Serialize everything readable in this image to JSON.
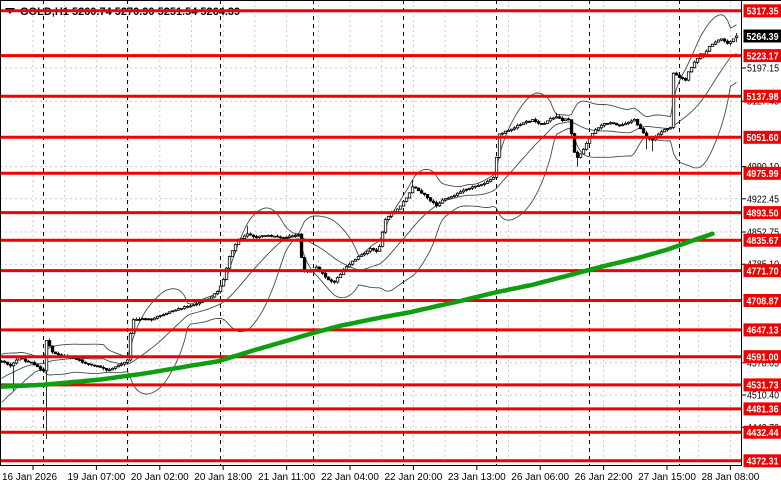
{
  "window": {
    "title": "GOLD,H1  5260.74 5270.90 5251.54 5264.39"
  },
  "chart_data": {
    "type": "candlestick",
    "symbol": "GOLD",
    "timeframe": "H1",
    "title": "GOLD,H1  5260.74 5270.90 5251.54 5264.39",
    "last_bar_ohlc": {
      "open": 5260.74,
      "high": 5270.9,
      "low": 5251.54,
      "close": 5264.39
    },
    "current_price_label": "5264.39",
    "x_labels": [
      "16 Jan 2026",
      "19 Jan 07:00",
      "20 Jan 02:00",
      "20 Jan 18:00",
      "21 Jan 11:00",
      "22 Jan 04:00",
      "22 Jan 20:00",
      "23 Jan 13:00",
      "26 Jan 06:00",
      "26 Jan 22:00",
      "27 Jan 15:00",
      "28 Jan 08:00"
    ],
    "y_tick_labels": [
      "5197.15",
      "5127.45",
      "4990.10",
      "4922.45",
      "4852.75",
      "4785.10",
      "4578.05",
      "4510.40",
      "4442.70"
    ],
    "red_levels": [
      "5317.35",
      "5223.17",
      "5137.98",
      "5051.60",
      "4975.99",
      "4893.50",
      "4835.67",
      "4771.70",
      "4708.87",
      "4647.13",
      "4591.00",
      "4531.73",
      "4481.36",
      "4432.44",
      "4372.31"
    ],
    "ylim": [
      4361.4,
      5340
    ],
    "n_bars": 246,
    "bollinger": {
      "period": 20,
      "deviation": 2
    },
    "day_separator_bars": [
      14,
      42,
      73,
      104,
      134,
      165,
      196,
      226
    ],
    "close_path_anchors": [
      [
        0,
        4583
      ],
      [
        3,
        4572
      ],
      [
        6,
        4588
      ],
      [
        10,
        4578
      ],
      [
        13,
        4566
      ],
      [
        14,
        4560
      ],
      [
        15,
        4625
      ],
      [
        17,
        4600
      ],
      [
        20,
        4592
      ],
      [
        24,
        4588
      ],
      [
        28,
        4578
      ],
      [
        32,
        4570
      ],
      [
        36,
        4562
      ],
      [
        40,
        4575
      ],
      [
        42,
        4585
      ],
      [
        43,
        4640
      ],
      [
        44,
        4668
      ],
      [
        47,
        4672
      ],
      [
        50,
        4668
      ],
      [
        53,
        4678
      ],
      [
        57,
        4688
      ],
      [
        61,
        4695
      ],
      [
        65,
        4703
      ],
      [
        69,
        4712
      ],
      [
        72,
        4728
      ],
      [
        74,
        4752
      ],
      [
        76,
        4800
      ],
      [
        78,
        4828
      ],
      [
        80,
        4840
      ],
      [
        82,
        4848
      ],
      [
        85,
        4842
      ],
      [
        88,
        4846
      ],
      [
        91,
        4843
      ],
      [
        94,
        4840
      ],
      [
        97,
        4846
      ],
      [
        99,
        4848
      ],
      [
        100,
        4800
      ],
      [
        101,
        4772
      ],
      [
        103,
        4768
      ],
      [
        105,
        4778
      ],
      [
        107,
        4765
      ],
      [
        109,
        4752
      ],
      [
        111,
        4748
      ],
      [
        113,
        4765
      ],
      [
        115,
        4780
      ],
      [
        117,
        4792
      ],
      [
        119,
        4800
      ],
      [
        121,
        4808
      ],
      [
        123,
        4818
      ],
      [
        125,
        4812
      ],
      [
        126,
        4822
      ],
      [
        127,
        4852
      ],
      [
        128,
        4880
      ],
      [
        130,
        4892
      ],
      [
        132,
        4900
      ],
      [
        135,
        4925
      ],
      [
        137,
        4948
      ],
      [
        139,
        4940
      ],
      [
        141,
        4932
      ],
      [
        143,
        4918
      ],
      [
        145,
        4908
      ],
      [
        147,
        4920
      ],
      [
        150,
        4928
      ],
      [
        153,
        4938
      ],
      [
        156,
        4945
      ],
      [
        159,
        4950
      ],
      [
        162,
        4958
      ],
      [
        164,
        4968
      ],
      [
        165,
        5010
      ],
      [
        166,
        5058
      ],
      [
        168,
        5065
      ],
      [
        171,
        5072
      ],
      [
        174,
        5082
      ],
      [
        177,
        5088
      ],
      [
        180,
        5078
      ],
      [
        183,
        5090
      ],
      [
        185,
        5096
      ],
      [
        187,
        5088
      ],
      [
        189,
        5090
      ],
      [
        190,
        5060
      ],
      [
        191,
        5020
      ],
      [
        192,
        5008
      ],
      [
        194,
        5028
      ],
      [
        196,
        5052
      ],
      [
        198,
        5068
      ],
      [
        200,
        5078
      ],
      [
        203,
        5082
      ],
      [
        206,
        5076
      ],
      [
        209,
        5082
      ],
      [
        211,
        5088
      ],
      [
        213,
        5070
      ],
      [
        215,
        5052
      ],
      [
        217,
        5045
      ],
      [
        219,
        5058
      ],
      [
        221,
        5068
      ],
      [
        223,
        5072
      ],
      [
        224,
        5185
      ],
      [
        226,
        5178
      ],
      [
        228,
        5172
      ],
      [
        229,
        5190
      ],
      [
        231,
        5208
      ],
      [
        233,
        5228
      ],
      [
        234,
        5222
      ],
      [
        236,
        5242
      ],
      [
        238,
        5252
      ],
      [
        240,
        5258
      ],
      [
        242,
        5248
      ],
      [
        243,
        5252
      ],
      [
        245,
        5264.39
      ]
    ],
    "wick_overrides": [
      {
        "i": 4,
        "low": 4520
      },
      {
        "i": 15,
        "low": 4418
      },
      {
        "i": 82,
        "high": 4866
      },
      {
        "i": 137,
        "high": 4962
      },
      {
        "i": 185,
        "high": 5103
      },
      {
        "i": 192,
        "low": 4990
      },
      {
        "i": 215,
        "low": 5026
      },
      {
        "i": 217,
        "low": 5022
      }
    ],
    "ma_green_anchors": [
      [
        0,
        4528
      ],
      [
        14,
        4532
      ],
      [
        33,
        4543
      ],
      [
        48,
        4556
      ],
      [
        64,
        4573
      ],
      [
        72,
        4581
      ],
      [
        85,
        4606
      ],
      [
        96,
        4626
      ],
      [
        104,
        4641
      ],
      [
        113,
        4656
      ],
      [
        120,
        4665
      ],
      [
        127,
        4674
      ],
      [
        136,
        4684
      ],
      [
        145,
        4697
      ],
      [
        153,
        4708
      ],
      [
        164,
        4725
      ],
      [
        177,
        4742
      ],
      [
        188,
        4760
      ],
      [
        200,
        4780
      ],
      [
        212,
        4798
      ],
      [
        222,
        4816
      ],
      [
        230,
        4834
      ],
      [
        237,
        4849
      ]
    ],
    "colors": {
      "bull_body": "#ffffff",
      "bear_body": "#000000",
      "outline": "#000000",
      "bands": "#3e4e4e",
      "ma_green": "#0f9e0f",
      "level_red": "#f00000",
      "grid": "#c9c9c9",
      "separator": "#000000",
      "axis_text": "#000000",
      "current_price_bg": "#000000",
      "label_text": "#ffffff"
    }
  }
}
